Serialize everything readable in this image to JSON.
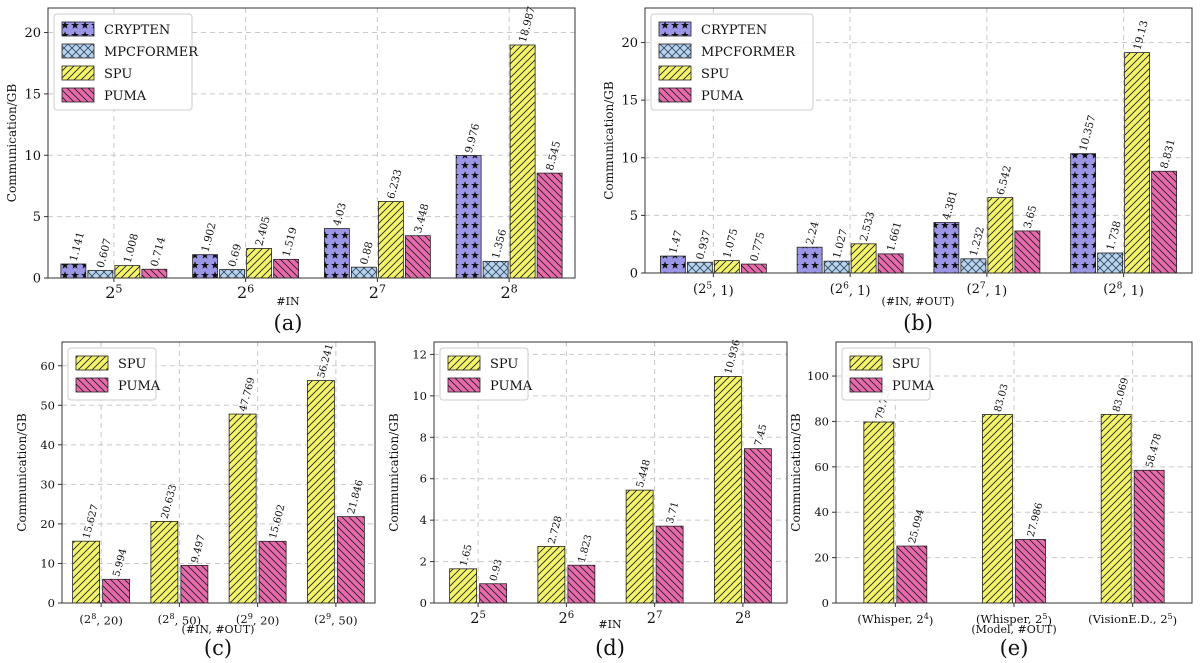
{
  "colors": {
    "CRYPTEN": "#9b96e6",
    "MPCFORMER": "#b7d3f0",
    "SPU": "#f5f56a",
    "PUMA": "#e86aac"
  },
  "chart_data": [
    {
      "type": "bar",
      "caption": "(a)",
      "xlabel": "#IN",
      "ylabel": "Communication/GB",
      "ylim": [
        0,
        22
      ],
      "yticks": [
        0,
        5,
        10,
        15,
        20
      ],
      "categories": [
        {
          "base": "2",
          "sup": "5"
        },
        {
          "base": "2",
          "sup": "6"
        },
        {
          "base": "2",
          "sup": "7"
        },
        {
          "base": "2",
          "sup": "8"
        }
      ],
      "series": [
        {
          "name": "CRYPTEN",
          "values": [
            1.141,
            1.902,
            4.03,
            9.976
          ]
        },
        {
          "name": "MPCFORMER",
          "values": [
            0.607,
            0.69,
            0.88,
            1.356
          ]
        },
        {
          "name": "SPU",
          "values": [
            1.008,
            2.405,
            6.233,
            18.987
          ]
        },
        {
          "name": "PUMA",
          "values": [
            0.714,
            1.519,
            3.448,
            8.545
          ]
        }
      ],
      "legend": "top-left"
    },
    {
      "type": "bar",
      "caption": "(b)",
      "xlabel": "(#IN, #OUT)",
      "ylabel": "Communication/GB",
      "ylim": [
        0,
        23
      ],
      "yticks": [
        0,
        5,
        10,
        15,
        20
      ],
      "categories": [
        {
          "pre": "(",
          "base": "2",
          "sup": "5",
          "post": ", 1)"
        },
        {
          "pre": "(",
          "base": "2",
          "sup": "6",
          "post": ", 1)"
        },
        {
          "pre": "(",
          "base": "2",
          "sup": "7",
          "post": ", 1)"
        },
        {
          "pre": "(",
          "base": "2",
          "sup": "8",
          "post": ", 1)"
        }
      ],
      "series": [
        {
          "name": "CRYPTEN",
          "values": [
            1.47,
            2.24,
            4.381,
            10.357
          ]
        },
        {
          "name": "MPCFORMER",
          "values": [
            0.937,
            1.027,
            1.232,
            1.738
          ]
        },
        {
          "name": "SPU",
          "values": [
            1.075,
            2.533,
            6.542,
            19.13
          ]
        },
        {
          "name": "PUMA",
          "values": [
            0.775,
            1.661,
            3.65,
            8.831
          ]
        }
      ],
      "legend": "top-left"
    },
    {
      "type": "bar",
      "caption": "(c)",
      "xlabel": "(#IN, #OUT)",
      "ylabel": "Communication/GB",
      "ylim": [
        0,
        66
      ],
      "yticks": [
        0,
        10,
        20,
        30,
        40,
        50,
        60
      ],
      "categories": [
        {
          "pre": "(",
          "base": "2",
          "sup": "8",
          "post": ", 20)"
        },
        {
          "pre": "(",
          "base": "2",
          "sup": "8",
          "post": ", 50)"
        },
        {
          "pre": "(",
          "base": "2",
          "sup": "9",
          "post": ", 20)"
        },
        {
          "pre": "(",
          "base": "2",
          "sup": "9",
          "post": ", 50)"
        }
      ],
      "series": [
        {
          "name": "SPU",
          "values": [
            15.627,
            20.633,
            47.769,
            56.241
          ]
        },
        {
          "name": "PUMA",
          "values": [
            5.994,
            9.497,
            15.602,
            21.846
          ]
        }
      ],
      "legend": "top-left"
    },
    {
      "type": "bar",
      "caption": "(d)",
      "xlabel": "#IN",
      "ylabel": "Communication/GB",
      "ylim": [
        0,
        12.6
      ],
      "yticks": [
        0,
        2,
        4,
        6,
        8,
        10,
        12
      ],
      "categories": [
        {
          "base": "2",
          "sup": "5"
        },
        {
          "base": "2",
          "sup": "6"
        },
        {
          "base": "2",
          "sup": "7"
        },
        {
          "base": "2",
          "sup": "8"
        }
      ],
      "series": [
        {
          "name": "SPU",
          "values": [
            1.65,
            2.728,
            5.448,
            10.936
          ]
        },
        {
          "name": "PUMA",
          "values": [
            0.93,
            1.823,
            3.71,
            7.45
          ]
        }
      ],
      "legend": "top-left"
    },
    {
      "type": "bar",
      "caption": "(e)",
      "xlabel": "(Model, #OUT)",
      "ylabel": "Communication/GB",
      "ylim": [
        0,
        115
      ],
      "yticks": [
        0,
        20,
        40,
        60,
        80,
        100
      ],
      "categories": [
        {
          "pre": "(Whisper, ",
          "base": "2",
          "sup": "4",
          "post": ")"
        },
        {
          "pre": "(Whisper, ",
          "base": "2",
          "sup": "5",
          "post": ")"
        },
        {
          "pre": "(VisionE.D., ",
          "base": "2",
          "sup": "5",
          "post": ")"
        }
      ],
      "series": [
        {
          "name": "SPU",
          "values": [
            79.728,
            83.03,
            83.069
          ]
        },
        {
          "name": "PUMA",
          "values": [
            25.094,
            27.986,
            58.478
          ]
        }
      ],
      "legend": "top-left"
    }
  ]
}
